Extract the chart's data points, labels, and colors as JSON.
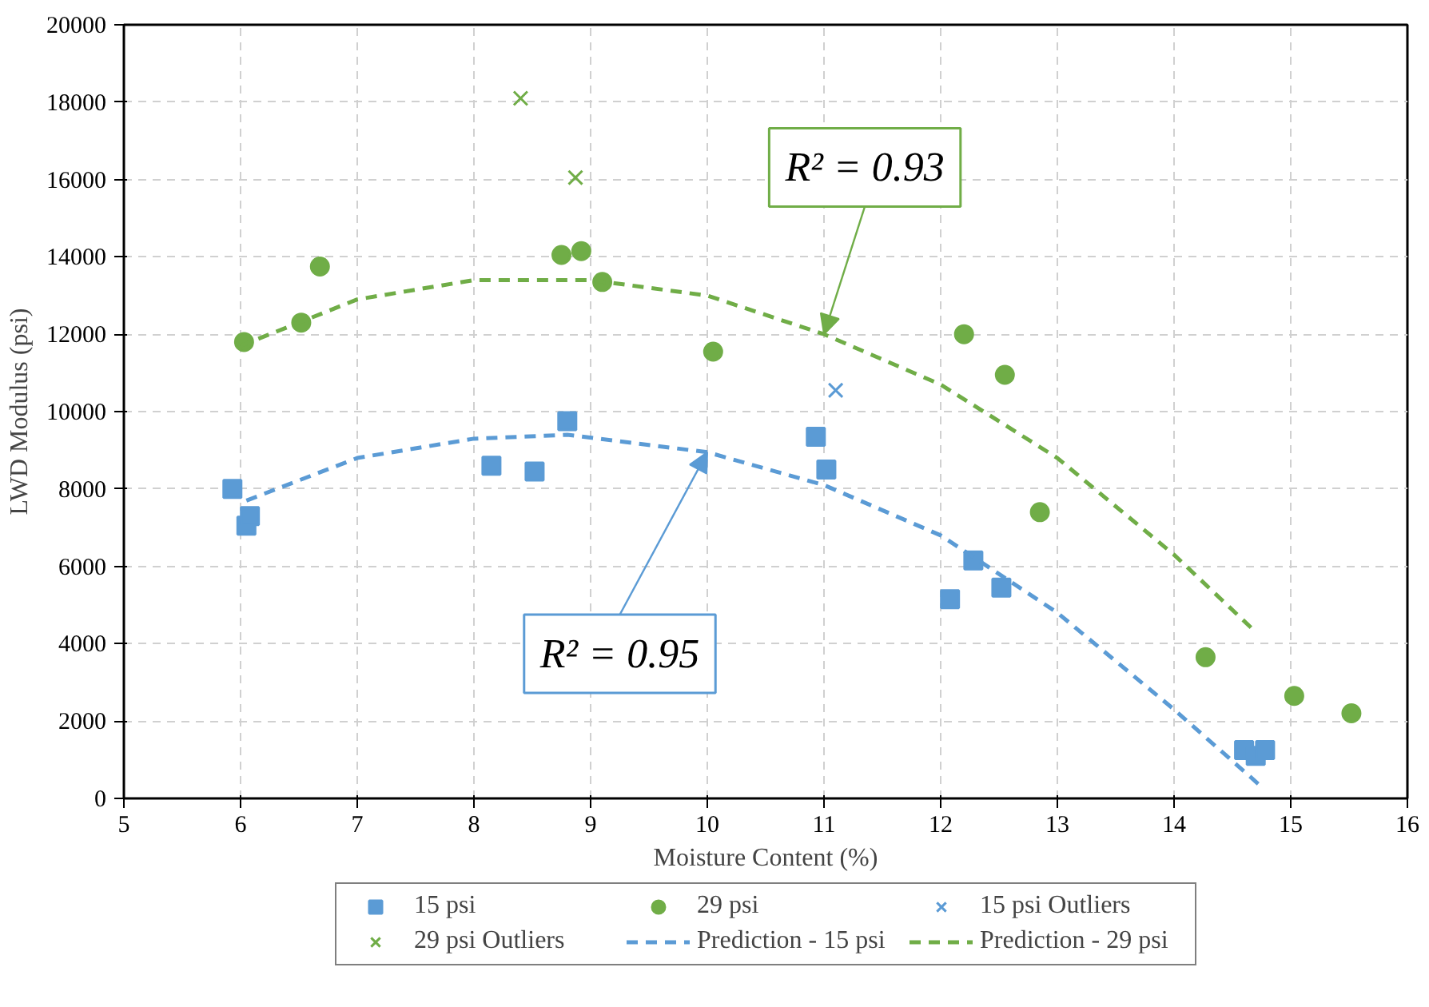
{
  "chart_data": {
    "type": "scatter",
    "xlabel": "Moisture Content (%)",
    "ylabel": "LWD Modulus (psi)",
    "xlim": [
      5,
      16
    ],
    "xticks": [
      5,
      6,
      7,
      8,
      9,
      10,
      11,
      12,
      13,
      14,
      15,
      16
    ],
    "ylim": [
      0,
      20000
    ],
    "yticks": [
      0,
      2000,
      4000,
      6000,
      8000,
      10000,
      12000,
      14000,
      16000,
      18000,
      20000
    ],
    "grid": true,
    "legend": "bottom",
    "series": [
      {
        "name": "15 psi",
        "color": "#5b9bd5",
        "marker": "square",
        "x": [
          5.93,
          6.05,
          6.08,
          8.15,
          8.52,
          8.8,
          10.93,
          11.02,
          12.08,
          12.28,
          12.52,
          14.6,
          14.7,
          14.78
        ],
        "values": [
          8000,
          7050,
          7300,
          8600,
          8450,
          9750,
          9350,
          8500,
          5150,
          6150,
          5450,
          1250,
          1100,
          1250
        ]
      },
      {
        "name": "29 psi",
        "color": "#70ad47",
        "marker": "circle",
        "x": [
          6.03,
          6.52,
          6.68,
          8.75,
          8.92,
          9.1,
          10.05,
          12.2,
          12.55,
          12.85,
          14.27,
          15.03,
          15.52
        ],
        "values": [
          11800,
          12300,
          13750,
          14050,
          14150,
          13350,
          11550,
          12000,
          10950,
          7400,
          3650,
          2650,
          2200
        ]
      },
      {
        "name": "15 psi Outliers",
        "color": "#5b9bd5",
        "marker": "cross",
        "x": [
          11.1
        ],
        "values": [
          10550
        ]
      },
      {
        "name": "29 psi Outliers",
        "color": "#70ad47",
        "marker": "cross",
        "x": [
          8.4,
          8.87
        ],
        "values": [
          18100,
          16050
        ]
      },
      {
        "name": "Prediction - 15 psi",
        "type": "line",
        "line_style": "dashed",
        "color": "#5b9bd5",
        "x": [
          6.05,
          7,
          8,
          8.8,
          10,
          11,
          12,
          13,
          14,
          14.75
        ],
        "values": [
          7700,
          8800,
          9300,
          9400,
          8950,
          8100,
          6800,
          4800,
          2300,
          300
        ]
      },
      {
        "name": "Prediction - 29 psi",
        "type": "line",
        "line_style": "dashed",
        "color": "#70ad47",
        "x": [
          6,
          7,
          8,
          9,
          10,
          11,
          12,
          13,
          14,
          14.7
        ],
        "values": [
          11700,
          12900,
          13400,
          13400,
          13000,
          12000,
          10700,
          8800,
          6300,
          4300
        ]
      }
    ],
    "annotations": [
      {
        "text": "R² = 0.93",
        "x": 11,
        "y": 12000
      },
      {
        "text": "R² = 0.95",
        "x": 10,
        "y": 8950
      }
    ]
  }
}
